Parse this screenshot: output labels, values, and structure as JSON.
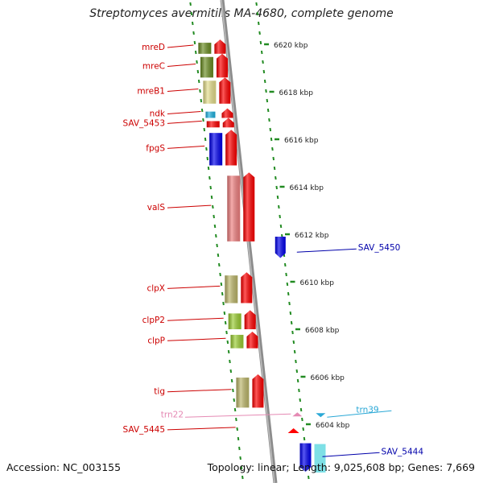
{
  "header": {
    "organism": "Streptomyces avermitilis MA-4680",
    "suffix": ", complete genome"
  },
  "footer": {
    "accession": "Accession: NC_003155",
    "summary": "Topology: linear; Length: 9,025,608 bp; Genes: 7,669"
  },
  "colors": {
    "backbone": "#8c8c8c",
    "ruler": "#228b22",
    "forward_label": "#cc0000",
    "reverse_label": "#0000aa",
    "trna_label": "#2aa8d6",
    "pink_label": "#e58ab4"
  },
  "ruler": {
    "ticks": [
      {
        "label": "6620 kbp",
        "pos": 6620
      },
      {
        "label": "6618 kbp",
        "pos": 6618
      },
      {
        "label": "6616 kbp",
        "pos": 6616
      },
      {
        "label": "6614 kbp",
        "pos": 6614
      },
      {
        "label": "6612 kbp",
        "pos": 6612
      },
      {
        "label": "6610 kbp",
        "pos": 6610
      },
      {
        "label": "6608 kbp",
        "pos": 6608
      },
      {
        "label": "6606 kbp",
        "pos": 6606
      },
      {
        "label": "6604 kbp",
        "pos": 6604
      }
    ]
  },
  "genes": [
    {
      "name": "mreD",
      "strand": "forward",
      "start": 6619.6,
      "end": 6620.2
    },
    {
      "name": "mreC",
      "strand": "forward",
      "start": 6618.6,
      "end": 6619.6
    },
    {
      "name": "mreB1",
      "strand": "forward",
      "start": 6617.5,
      "end": 6618.6
    },
    {
      "name": "ndk",
      "strand": "forward",
      "start": 6616.9,
      "end": 6617.3
    },
    {
      "name": "SAV_5453",
      "strand": "forward",
      "start": 6616.5,
      "end": 6616.9
    },
    {
      "name": "fpgS",
      "strand": "forward",
      "start": 6614.9,
      "end": 6616.4
    },
    {
      "name": "valS",
      "strand": "forward",
      "start": 6611.7,
      "end": 6614.6
    },
    {
      "name": "SAV_5450",
      "strand": "reverse",
      "start": 6611.0,
      "end": 6611.9
    },
    {
      "name": "clpX",
      "strand": "forward",
      "start": 6609.1,
      "end": 6610.4
    },
    {
      "name": "clpP2",
      "strand": "forward",
      "start": 6608.0,
      "end": 6608.8
    },
    {
      "name": "clpP",
      "strand": "forward",
      "start": 6607.2,
      "end": 6607.9
    },
    {
      "name": "tig",
      "strand": "forward",
      "start": 6604.7,
      "end": 6606.1
    },
    {
      "name": "trn39",
      "strand": "reverse",
      "start": 6604.4,
      "end": 6604.6
    },
    {
      "name": "trn22",
      "strand": "forward",
      "start": 6604.4,
      "end": 6604.6
    },
    {
      "name": "SAV_5445",
      "strand": "forward",
      "start": 6603.7,
      "end": 6603.9
    },
    {
      "name": "SAV_5444",
      "strand": "reverse",
      "start": 6602.0,
      "end": 6603.2
    }
  ]
}
